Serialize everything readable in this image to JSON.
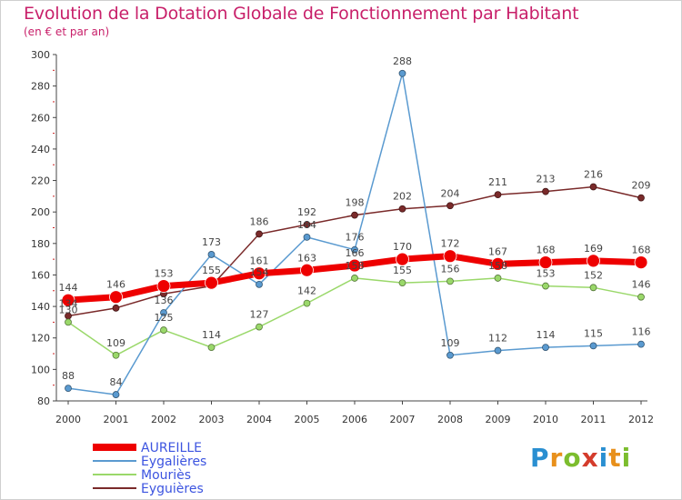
{
  "title": "Evolution de la Dotation Globale de Fonctionnement par Habitant",
  "subtitle": "(en € et par an)",
  "logo": "Proxiti",
  "chart_data": {
    "type": "line",
    "title": "Evolution de la Dotation Globale de Fonctionnement par Habitant",
    "subtitle": "(en € et par an)",
    "x": [
      "2000",
      "2001",
      "2002",
      "2003",
      "2004",
      "2005",
      "2006",
      "2007",
      "2008",
      "2009",
      "2010",
      "2011",
      "2012"
    ],
    "ylim": [
      80,
      300
    ],
    "yticks": [
      80,
      100,
      120,
      140,
      160,
      180,
      200,
      220,
      240,
      260,
      280,
      300
    ],
    "grid": false,
    "legend_position": "bottom-left",
    "series": [
      {
        "name": "Eyguières",
        "color": "#7a2a2a",
        "values": [
          134,
          139,
          148,
          153,
          186,
          192,
          198,
          202,
          204,
          211,
          213,
          216,
          209
        ],
        "labels": [
          "134",
          "",
          "",
          "",
          "186",
          "192",
          "198",
          "202",
          "204",
          "211",
          "213",
          "216",
          "209"
        ]
      },
      {
        "name": "Mouriès",
        "color": "#9ad86a",
        "values": [
          130,
          109,
          125,
          114,
          127,
          142,
          158,
          155,
          156,
          158,
          153,
          152,
          146
        ],
        "labels": [
          "130",
          "109",
          "125",
          "114",
          "127",
          "142",
          "158",
          "155",
          "156",
          "158",
          "153",
          "152",
          "146"
        ]
      },
      {
        "name": "Eygalières",
        "color": "#5a9ad0",
        "values": [
          88,
          84,
          136,
          173,
          154,
          184,
          176,
          288,
          109,
          112,
          114,
          115,
          116
        ],
        "labels": [
          "88",
          "84",
          "136",
          "173",
          "154",
          "184",
          "176",
          "288",
          "109",
          "112",
          "114",
          "115",
          "116"
        ]
      },
      {
        "name": "AUREILLE",
        "color": "#ee0000",
        "values": [
          144,
          146,
          153,
          155,
          161,
          163,
          166,
          170,
          172,
          167,
          168,
          169,
          168
        ],
        "labels": [
          "144",
          "146",
          "153",
          "155",
          "161",
          "163",
          "166",
          "170",
          "172",
          "167",
          "168",
          "169",
          "168"
        ]
      }
    ]
  }
}
